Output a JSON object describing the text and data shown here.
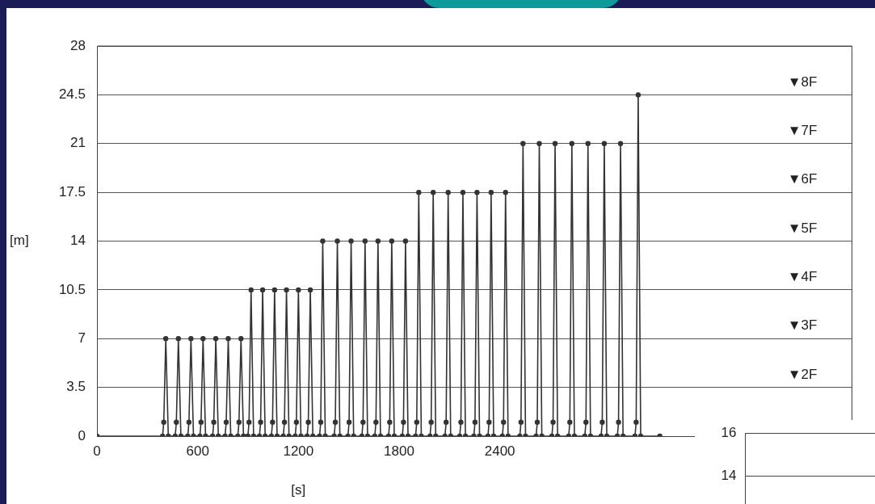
{
  "chart_data": [
    {
      "type": "line",
      "xlabel": "[s]",
      "ylabel": "[m]",
      "x": [
        0,
        391,
        398,
        410,
        425,
        466,
        473,
        485,
        500,
        541,
        548,
        560,
        575,
        613,
        620,
        632,
        647,
        689,
        696,
        708,
        723,
        763,
        770,
        782,
        797,
        839,
        846,
        858,
        873,
        899,
        906,
        918,
        933,
        968,
        975,
        987,
        1002,
        1039,
        1046,
        1058,
        1073,
        1110,
        1117,
        1129,
        1144,
        1181,
        1188,
        1200,
        1215,
        1252,
        1259,
        1271,
        1286,
        1326,
        1333,
        1345,
        1360,
        1413,
        1420,
        1432,
        1447,
        1495,
        1502,
        1514,
        1529,
        1578,
        1585,
        1597,
        1612,
        1655,
        1662,
        1674,
        1689,
        1737,
        1744,
        1756,
        1771,
        1819,
        1826,
        1838,
        1853,
        1898,
        1905,
        1917,
        1932,
        1984,
        1991,
        2003,
        2018,
        2073,
        2080,
        2092,
        2107,
        2161,
        2168,
        2180,
        2195,
        2245,
        2252,
        2264,
        2279,
        2329,
        2336,
        2348,
        2363,
        2415,
        2422,
        2434,
        2449,
        2519,
        2526,
        2538,
        2553,
        2616,
        2623,
        2635,
        2650,
        2710,
        2717,
        2729,
        2744,
        2810,
        2817,
        2829,
        2844,
        2906,
        2913,
        2925,
        2940,
        3003,
        3010,
        3022,
        3037,
        3100,
        3107,
        3119,
        3134,
        3205,
        3212,
        3224,
        3239,
        3353
      ],
      "series": [
        {
          "color": "#333333",
          "values": [
            0,
            0,
            1,
            7,
            0,
            0,
            1,
            7,
            0,
            0,
            1,
            7,
            0,
            0,
            1,
            7,
            0,
            0,
            1,
            7,
            0,
            0,
            1,
            7,
            0,
            0,
            1,
            7,
            0,
            0,
            1,
            10.5,
            0,
            0,
            1,
            10.5,
            0,
            0,
            1,
            10.5,
            0,
            0,
            1,
            10.5,
            0,
            0,
            1,
            10.5,
            0,
            0,
            1,
            10.5,
            0,
            0,
            1,
            14,
            0,
            0,
            1,
            14,
            0,
            0,
            1,
            14,
            0,
            0,
            1,
            14,
            0,
            0,
            1,
            14,
            0,
            0,
            1,
            14,
            0,
            0,
            1,
            14,
            0,
            0,
            1,
            17.5,
            0,
            0,
            1,
            17.5,
            0,
            0,
            1,
            17.5,
            0,
            0,
            1,
            17.5,
            0,
            0,
            1,
            17.5,
            0,
            0,
            1,
            17.5,
            0,
            0,
            1,
            17.5,
            0,
            0,
            1,
            21,
            0,
            0,
            1,
            21,
            0,
            0,
            1,
            21,
            0,
            0,
            1,
            21,
            0,
            0,
            1,
            21,
            0,
            0,
            1,
            21,
            0,
            0,
            1,
            21,
            0,
            0,
            1,
            24.5,
            0,
            0
          ]
        }
      ],
      "xlim": [
        0,
        4500
      ],
      "xticks": [
        0,
        600,
        1200,
        1800,
        2400
      ],
      "ylim": [
        0,
        28
      ],
      "yticks": [
        0,
        3.5,
        7,
        10.5,
        14,
        17.5,
        21,
        24.5,
        28
      ],
      "grid": "y",
      "marker": "circle",
      "line_style": "solid",
      "legend": false,
      "annotations": [
        "▼8F",
        "▼7F",
        "▼6F",
        "▼5F",
        "▼4F",
        "▼3F",
        "▼2F"
      ]
    },
    {
      "type": "other",
      "annotations": [
        "16",
        "14"
      ]
    }
  ]
}
